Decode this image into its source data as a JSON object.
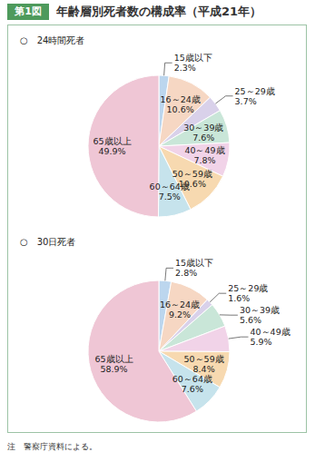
{
  "figure_label": "第1図",
  "title": "年齢層別死者数の構成率（平成21年）",
  "note": "注　警察庁資料による。",
  "chart_data": [
    {
      "type": "pie",
      "title": "○　24時間死者",
      "categories": [
        "15歳以下",
        "16～24歳",
        "25～29歳",
        "30～39歳",
        "40～49歳",
        "50～59歳",
        "60～64歳",
        "65歳以上"
      ],
      "values": [
        2.3,
        10.6,
        3.7,
        7.6,
        7.8,
        10.6,
        7.5,
        49.9
      ],
      "value_labels": [
        "2.3%",
        "10.6%",
        "3.7%",
        "7.6%",
        "7.8%",
        "10.6%",
        "7.5%",
        "49.9%"
      ],
      "colors": [
        "#bcd6ee",
        "#f6d7c3",
        "#d9d1ea",
        "#c9e6d8",
        "#f1d3e8",
        "#f7d9b0",
        "#c6e3ec",
        "#efc6d5"
      ],
      "data_labels": true
    },
    {
      "type": "pie",
      "title": "○　30日死者",
      "categories": [
        "15歳以下",
        "16～24歳",
        "25～29歳",
        "30～39歳",
        "40～49歳",
        "50～59歳",
        "60～64歳",
        "65歳以上"
      ],
      "values": [
        2.8,
        9.2,
        1.6,
        5.6,
        5.9,
        8.4,
        7.6,
        58.9
      ],
      "value_labels": [
        "2.8%",
        "9.2%",
        "1.6%",
        "5.6%",
        "5.9%",
        "8.4%",
        "7.6%",
        "58.9%"
      ],
      "colors": [
        "#bcd6ee",
        "#f6d7c3",
        "#d9d1ea",
        "#c9e6d8",
        "#f1d3e8",
        "#f7d9b0",
        "#c6e3ec",
        "#efc6d5"
      ],
      "data_labels": true
    }
  ]
}
